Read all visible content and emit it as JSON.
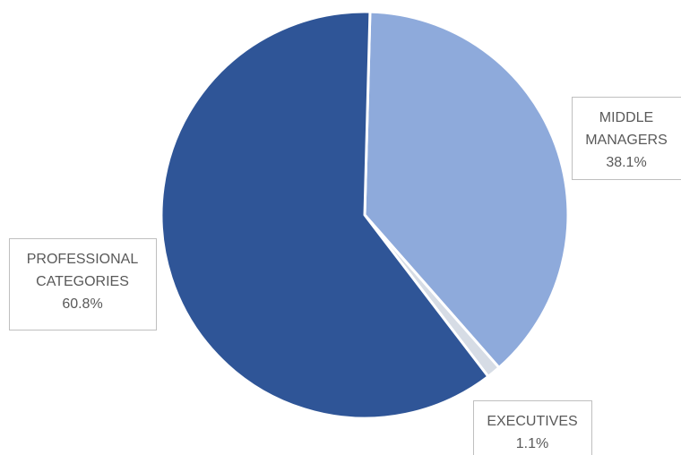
{
  "chart_data": {
    "type": "pie",
    "slices": [
      {
        "label": [
          "MIDDLE",
          "MANAGERS"
        ],
        "value": 38.1,
        "display": "38.1%",
        "color": "#8eaadb"
      },
      {
        "label": [
          "EXECUTIVES"
        ],
        "value": 1.1,
        "display": "1.1%",
        "color": "#d6dce5"
      },
      {
        "label": [
          "PROFESSIONAL",
          "CATEGORIES"
        ],
        "value": 60.8,
        "display": "60.8%",
        "color": "#2f5597"
      }
    ],
    "start_angle_deg": 1.5,
    "direction": "clockwise",
    "legend": "none",
    "data_labels": "category and percentage in boxed callouts"
  }
}
